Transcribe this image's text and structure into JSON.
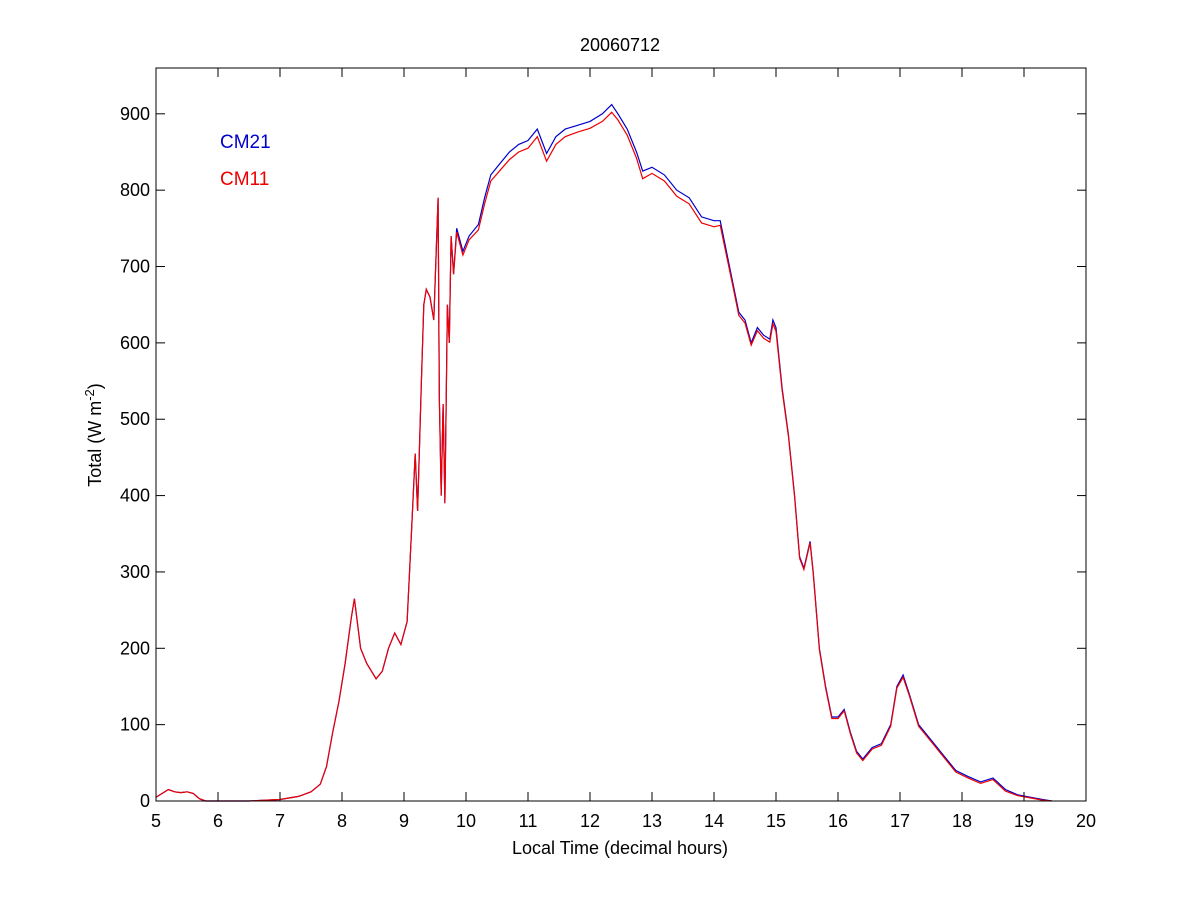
{
  "chart_data": {
    "type": "line",
    "title": "20060712",
    "xlabel": "Local Time (decimal hours)",
    "ylabel": {
      "prefix": "Total (W m",
      "superscript": "-2",
      "suffix": ")"
    },
    "xlim": [
      5,
      20
    ],
    "ylim": [
      0,
      960
    ],
    "x_ticks": [
      5,
      6,
      7,
      8,
      9,
      10,
      11,
      12,
      13,
      14,
      15,
      16,
      17,
      18,
      19,
      20
    ],
    "y_ticks": [
      0,
      100,
      200,
      300,
      400,
      500,
      600,
      700,
      800,
      900
    ],
    "grid": false,
    "legend_position": "top-left",
    "series": [
      {
        "name": "CM21",
        "color": "#0000cc",
        "points": [
          [
            5.0,
            5
          ],
          [
            5.1,
            10
          ],
          [
            5.2,
            15
          ],
          [
            5.3,
            12
          ],
          [
            5.4,
            11
          ],
          [
            5.5,
            12
          ],
          [
            5.6,
            10
          ],
          [
            5.7,
            3
          ],
          [
            5.8,
            0
          ],
          [
            6.5,
            0
          ],
          [
            7.0,
            2
          ],
          [
            7.3,
            6
          ],
          [
            7.5,
            12
          ],
          [
            7.65,
            22
          ],
          [
            7.75,
            45
          ],
          [
            7.85,
            90
          ],
          [
            7.95,
            130
          ],
          [
            8.05,
            180
          ],
          [
            8.15,
            240
          ],
          [
            8.2,
            265
          ],
          [
            8.3,
            200
          ],
          [
            8.4,
            180
          ],
          [
            8.55,
            160
          ],
          [
            8.65,
            170
          ],
          [
            8.75,
            200
          ],
          [
            8.85,
            220
          ],
          [
            8.95,
            205
          ],
          [
            9.05,
            235
          ],
          [
            9.12,
            350
          ],
          [
            9.18,
            455
          ],
          [
            9.22,
            380
          ],
          [
            9.28,
            550
          ],
          [
            9.32,
            650
          ],
          [
            9.36,
            670
          ],
          [
            9.42,
            660
          ],
          [
            9.48,
            630
          ],
          [
            9.52,
            720
          ],
          [
            9.55,
            790
          ],
          [
            9.57,
            530
          ],
          [
            9.6,
            400
          ],
          [
            9.63,
            520
          ],
          [
            9.66,
            390
          ],
          [
            9.7,
            650
          ],
          [
            9.73,
            600
          ],
          [
            9.76,
            740
          ],
          [
            9.8,
            690
          ],
          [
            9.85,
            750
          ],
          [
            9.95,
            720
          ],
          [
            10.05,
            740
          ],
          [
            10.2,
            755
          ],
          [
            10.3,
            790
          ],
          [
            10.4,
            820
          ],
          [
            10.55,
            835
          ],
          [
            10.7,
            850
          ],
          [
            10.85,
            860
          ],
          [
            11.0,
            865
          ],
          [
            11.15,
            880
          ],
          [
            11.3,
            848
          ],
          [
            11.45,
            870
          ],
          [
            11.6,
            880
          ],
          [
            11.8,
            885
          ],
          [
            12.0,
            890
          ],
          [
            12.2,
            900
          ],
          [
            12.35,
            912
          ],
          [
            12.45,
            900
          ],
          [
            12.6,
            880
          ],
          [
            12.75,
            850
          ],
          [
            12.85,
            825
          ],
          [
            13.0,
            830
          ],
          [
            13.2,
            820
          ],
          [
            13.4,
            800
          ],
          [
            13.6,
            790
          ],
          [
            13.8,
            765
          ],
          [
            14.0,
            760
          ],
          [
            14.1,
            760
          ],
          [
            14.2,
            720
          ],
          [
            14.3,
            680
          ],
          [
            14.4,
            640
          ],
          [
            14.5,
            630
          ],
          [
            14.6,
            600
          ],
          [
            14.7,
            620
          ],
          [
            14.8,
            610
          ],
          [
            14.9,
            605
          ],
          [
            14.95,
            630
          ],
          [
            15.0,
            620
          ],
          [
            15.1,
            540
          ],
          [
            15.2,
            480
          ],
          [
            15.3,
            400
          ],
          [
            15.38,
            320
          ],
          [
            15.45,
            305
          ],
          [
            15.55,
            340
          ],
          [
            15.6,
            300
          ],
          [
            15.7,
            200
          ],
          [
            15.8,
            150
          ],
          [
            15.9,
            110
          ],
          [
            16.0,
            110
          ],
          [
            16.1,
            120
          ],
          [
            16.2,
            90
          ],
          [
            16.3,
            65
          ],
          [
            16.4,
            55
          ],
          [
            16.55,
            70
          ],
          [
            16.7,
            75
          ],
          [
            16.85,
            100
          ],
          [
            16.95,
            150
          ],
          [
            17.05,
            165
          ],
          [
            17.15,
            140
          ],
          [
            17.3,
            100
          ],
          [
            17.5,
            80
          ],
          [
            17.7,
            60
          ],
          [
            17.9,
            40
          ],
          [
            18.1,
            32
          ],
          [
            18.3,
            25
          ],
          [
            18.5,
            30
          ],
          [
            18.7,
            15
          ],
          [
            18.9,
            8
          ],
          [
            19.1,
            5
          ],
          [
            19.3,
            2
          ],
          [
            19.45,
            0
          ]
        ]
      },
      {
        "name": "CM11",
        "color": "#ee0000",
        "points": [
          [
            5.0,
            5
          ],
          [
            5.1,
            10
          ],
          [
            5.2,
            15
          ],
          [
            5.3,
            12
          ],
          [
            5.4,
            11
          ],
          [
            5.5,
            12
          ],
          [
            5.6,
            10
          ],
          [
            5.7,
            3
          ],
          [
            5.8,
            0
          ],
          [
            6.5,
            0
          ],
          [
            7.0,
            2
          ],
          [
            7.3,
            6
          ],
          [
            7.5,
            12
          ],
          [
            7.65,
            22
          ],
          [
            7.75,
            45
          ],
          [
            7.85,
            90
          ],
          [
            7.95,
            130
          ],
          [
            8.05,
            180
          ],
          [
            8.15,
            240
          ],
          [
            8.2,
            265
          ],
          [
            8.3,
            200
          ],
          [
            8.4,
            180
          ],
          [
            8.55,
            160
          ],
          [
            8.65,
            170
          ],
          [
            8.75,
            200
          ],
          [
            8.85,
            220
          ],
          [
            8.95,
            205
          ],
          [
            9.05,
            235
          ],
          [
            9.12,
            350
          ],
          [
            9.18,
            455
          ],
          [
            9.22,
            380
          ],
          [
            9.28,
            550
          ],
          [
            9.32,
            650
          ],
          [
            9.36,
            670
          ],
          [
            9.42,
            660
          ],
          [
            9.48,
            630
          ],
          [
            9.52,
            720
          ],
          [
            9.55,
            790
          ],
          [
            9.57,
            530
          ],
          [
            9.6,
            400
          ],
          [
            9.63,
            520
          ],
          [
            9.66,
            390
          ],
          [
            9.7,
            650
          ],
          [
            9.73,
            600
          ],
          [
            9.76,
            740
          ],
          [
            9.8,
            690
          ],
          [
            9.85,
            745
          ],
          [
            9.95,
            715
          ],
          [
            10.05,
            735
          ],
          [
            10.2,
            748
          ],
          [
            10.3,
            782
          ],
          [
            10.4,
            812
          ],
          [
            10.55,
            826
          ],
          [
            10.7,
            840
          ],
          [
            10.85,
            850
          ],
          [
            11.0,
            855
          ],
          [
            11.15,
            870
          ],
          [
            11.3,
            838
          ],
          [
            11.45,
            860
          ],
          [
            11.6,
            870
          ],
          [
            11.8,
            876
          ],
          [
            12.0,
            881
          ],
          [
            12.2,
            890
          ],
          [
            12.35,
            902
          ],
          [
            12.45,
            892
          ],
          [
            12.6,
            872
          ],
          [
            12.75,
            842
          ],
          [
            12.85,
            815
          ],
          [
            13.0,
            822
          ],
          [
            13.2,
            812
          ],
          [
            13.4,
            792
          ],
          [
            13.6,
            782
          ],
          [
            13.8,
            757
          ],
          [
            14.0,
            752
          ],
          [
            14.1,
            754
          ],
          [
            14.2,
            715
          ],
          [
            14.3,
            676
          ],
          [
            14.4,
            636
          ],
          [
            14.5,
            626
          ],
          [
            14.6,
            597
          ],
          [
            14.7,
            616
          ],
          [
            14.8,
            606
          ],
          [
            14.9,
            601
          ],
          [
            14.95,
            625
          ],
          [
            15.0,
            615
          ],
          [
            15.1,
            537
          ],
          [
            15.2,
            478
          ],
          [
            15.3,
            398
          ],
          [
            15.38,
            318
          ],
          [
            15.45,
            303
          ],
          [
            15.55,
            338
          ],
          [
            15.6,
            298
          ],
          [
            15.7,
            198
          ],
          [
            15.8,
            148
          ],
          [
            15.9,
            108
          ],
          [
            16.0,
            108
          ],
          [
            16.1,
            118
          ],
          [
            16.2,
            88
          ],
          [
            16.3,
            63
          ],
          [
            16.4,
            53
          ],
          [
            16.55,
            68
          ],
          [
            16.7,
            73
          ],
          [
            16.85,
            98
          ],
          [
            16.95,
            148
          ],
          [
            17.05,
            162
          ],
          [
            17.15,
            138
          ],
          [
            17.3,
            98
          ],
          [
            17.5,
            78
          ],
          [
            17.7,
            58
          ],
          [
            17.9,
            38
          ],
          [
            18.1,
            30
          ],
          [
            18.3,
            23
          ],
          [
            18.5,
            28
          ],
          [
            18.7,
            13
          ],
          [
            18.9,
            7
          ],
          [
            19.1,
            4
          ],
          [
            19.3,
            1
          ],
          [
            19.45,
            0
          ]
        ]
      }
    ]
  }
}
